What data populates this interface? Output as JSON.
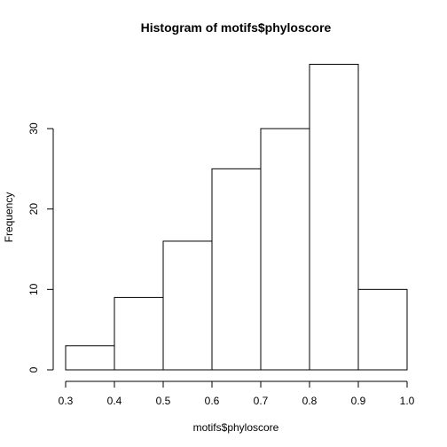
{
  "chart_data": {
    "type": "bar",
    "title": "Histogram of motifs$phyloscore",
    "xlabel": "motifs$phyloscore",
    "ylabel": "Frequency",
    "bins": [
      {
        "start": 0.3,
        "end": 0.4,
        "count": 3
      },
      {
        "start": 0.4,
        "end": 0.5,
        "count": 9
      },
      {
        "start": 0.5,
        "end": 0.6,
        "count": 16
      },
      {
        "start": 0.6,
        "end": 0.7,
        "count": 25
      },
      {
        "start": 0.7,
        "end": 0.8,
        "count": 30
      },
      {
        "start": 0.8,
        "end": 0.9,
        "count": 38
      },
      {
        "start": 0.9,
        "end": 1.0,
        "count": 10
      }
    ],
    "xlim": [
      0.3,
      1.0
    ],
    "ylim": [
      0,
      38
    ],
    "xticks": [
      "0.3",
      "0.4",
      "0.5",
      "0.6",
      "0.7",
      "0.8",
      "0.9",
      "1.0"
    ],
    "yticks": [
      "0",
      "10",
      "20",
      "30"
    ],
    "grid": false,
    "bar_fill": "#ffffff",
    "bar_stroke": "#000000"
  }
}
